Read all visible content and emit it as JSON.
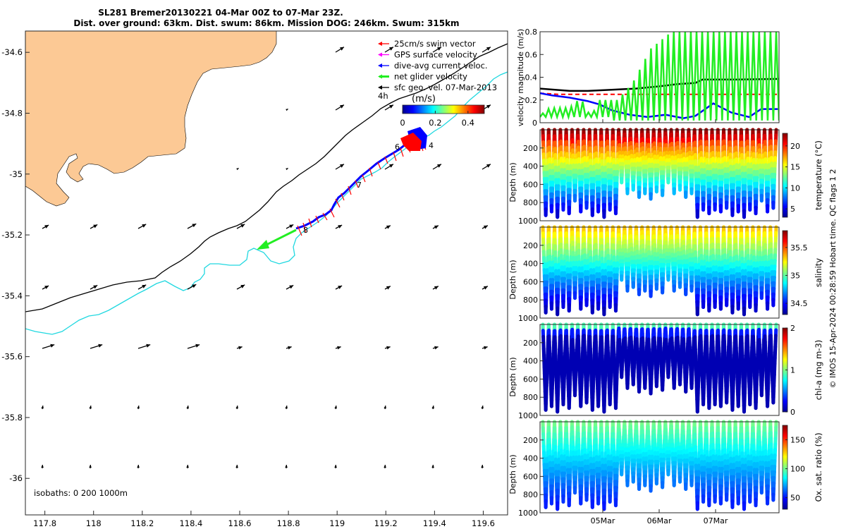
{
  "title_lines": [
    "SL281 Bremer20130221 04-Mar 00Z to 07-Mar 23Z.",
    "Dist. over ground: 63km. Dist. swum: 86km. Mission DOG: 246km. Swum: 315km"
  ],
  "copyright": "© IMOS 15-Apr-2024 00:28:59 Hobart time. QC flags 1  2",
  "colors": {
    "land": "#FCC995",
    "isobath_200": "#000000",
    "isobath_1000": "#20D8E0",
    "swim": "#FF0000",
    "gps": "#FF00FF",
    "dive_avg": "#0000FF",
    "net": "#22EE22",
    "geo": "#000000"
  },
  "chart_data": [
    {
      "type": "map",
      "x_ticks": [
        "117.8",
        "118",
        "118.2",
        "118.4",
        "118.6",
        "118.8",
        "119",
        "119.2",
        "119.4",
        "119.6"
      ],
      "y_ticks": [
        "-34.6",
        "-34.8",
        "-35",
        "-35.2",
        "-35.4",
        "-35.6",
        "-35.8",
        "-36"
      ],
      "xlim": [
        117.72,
        119.7
      ],
      "ylim": [
        -36.12,
        -34.53
      ],
      "legend": [
        {
          "label": "25cm/s swim vector",
          "color": "#FF0000"
        },
        {
          "label": "GPS surface velocity",
          "color": "#FF00FF"
        },
        {
          "label": "dive-avg current veloc.",
          "color": "#0000FF"
        },
        {
          "label": "net glider velocity",
          "color": "#22EE22"
        },
        {
          "label": "sfc geo. vel. 07-Mar-2013",
          "color": "#000000"
        }
      ],
      "legend_extra": "4h",
      "colorbar": {
        "label": "(m/s)",
        "ticks": [
          "0",
          "0.2",
          "0.4"
        ],
        "range": [
          0,
          0.5
        ]
      },
      "isobaths_note": "isobaths: 0   200  1000m",
      "track_labels": [
        "4",
        "6",
        "7",
        "8"
      ],
      "track": [
        [
          119.37,
          -34.92
        ],
        [
          119.3,
          -34.93
        ],
        [
          119.22,
          -34.97
        ],
        [
          119.14,
          -35.03
        ],
        [
          119.08,
          -35.08
        ],
        [
          119.02,
          -35.12
        ],
        [
          118.99,
          -35.15
        ],
        [
          118.96,
          -35.17
        ],
        [
          118.92,
          -35.19
        ],
        [
          118.84,
          -35.2
        ]
      ],
      "net_velocity": {
        "from": [
          118.84,
          -35.2
        ],
        "to": [
          118.69,
          -35.26
        ]
      }
    },
    {
      "type": "line",
      "ylabel": "velocity magnitude (m/s)",
      "ylim": [
        0,
        0.8
      ],
      "y_ticks": [
        "0",
        "0.2",
        "0.4",
        "0.6",
        "0.8"
      ],
      "series": [
        {
          "color": "#000000",
          "x": [
            0,
            0.25,
            0.5,
            0.8,
            1.2,
            1.6,
            2.0,
            2.3,
            2.6,
            2.72,
            2.9,
            3.3,
            4.0
          ],
          "values": [
            0.3,
            0.29,
            0.28,
            0.28,
            0.29,
            0.3,
            0.32,
            0.34,
            0.35,
            0.38,
            0.38,
            0.38,
            0.385
          ]
        },
        {
          "color": "#FF0000",
          "x": [
            0,
            0.3,
            4.0
          ],
          "values": [
            0.26,
            0.25,
            0.25
          ]
        },
        {
          "color": "#0000FF",
          "x": [
            0,
            0.2,
            0.5,
            0.8,
            1.0,
            1.2,
            1.5,
            1.8,
            2.1,
            2.4,
            2.6,
            2.9,
            3.2,
            3.5,
            3.7,
            4.0
          ],
          "values": [
            0.26,
            0.24,
            0.22,
            0.19,
            0.16,
            0.11,
            0.07,
            0.05,
            0.07,
            0.04,
            0.06,
            0.17,
            0.09,
            0.05,
            0.12,
            0.12
          ]
        },
        {
          "color": "#22EE22",
          "x": [
            0,
            0.1,
            0.25,
            0.5,
            0.62,
            0.7,
            0.85,
            1.0,
            1.3,
            1.55,
            1.85,
            2.2,
            2.55,
            2.9,
            3.25,
            3.6,
            4.0
          ],
          "values": [
            0.05,
            0.12,
            0.13,
            0.13,
            0.19,
            0.2,
            0.05,
            0.2,
            0.2,
            0.35,
            0.65,
            0.8,
            0.8,
            0.8,
            0.8,
            0.8,
            0.8
          ]
        }
      ]
    },
    {
      "type": "scatter",
      "ylabel": "Depth (m)",
      "cbar_label": "temperature (°C)",
      "y_ticks": [
        "200",
        "400",
        "600",
        "800",
        "1000"
      ],
      "ylim": [
        1000,
        0
      ],
      "cbar_ticks": [
        "5",
        "10",
        "15",
        "20"
      ],
      "cbar_range": [
        3,
        23
      ]
    },
    {
      "type": "scatter",
      "ylabel": "Depth (m)",
      "cbar_label": "salinity",
      "y_ticks": [
        "200",
        "400",
        "600",
        "800",
        "1000"
      ],
      "ylim": [
        1000,
        0
      ],
      "cbar_ticks": [
        "34.5",
        "35",
        "35.5"
      ],
      "cbar_range": [
        34.3,
        35.8
      ]
    },
    {
      "type": "scatter",
      "ylabel": "Depth (m)",
      "cbar_label": "chl-a (mg m-3)",
      "y_ticks": [
        "200",
        "400",
        "600",
        "800",
        "1000"
      ],
      "ylim": [
        1000,
        0
      ],
      "cbar_ticks": [
        "0",
        "1",
        "2"
      ],
      "cbar_range": [
        0,
        2
      ]
    },
    {
      "type": "scatter",
      "ylabel": "Depth (m)",
      "cbar_label": "Ox. sat. ratio (%)",
      "y_ticks": [
        "200",
        "400",
        "600",
        "800",
        "1000"
      ],
      "ylim": [
        1000,
        0
      ],
      "cbar_ticks": [
        "50",
        "100",
        "150"
      ],
      "cbar_range": [
        30,
        175
      ],
      "x_ticks": [
        "05Mar",
        "06Mar",
        "07Mar"
      ]
    }
  ]
}
